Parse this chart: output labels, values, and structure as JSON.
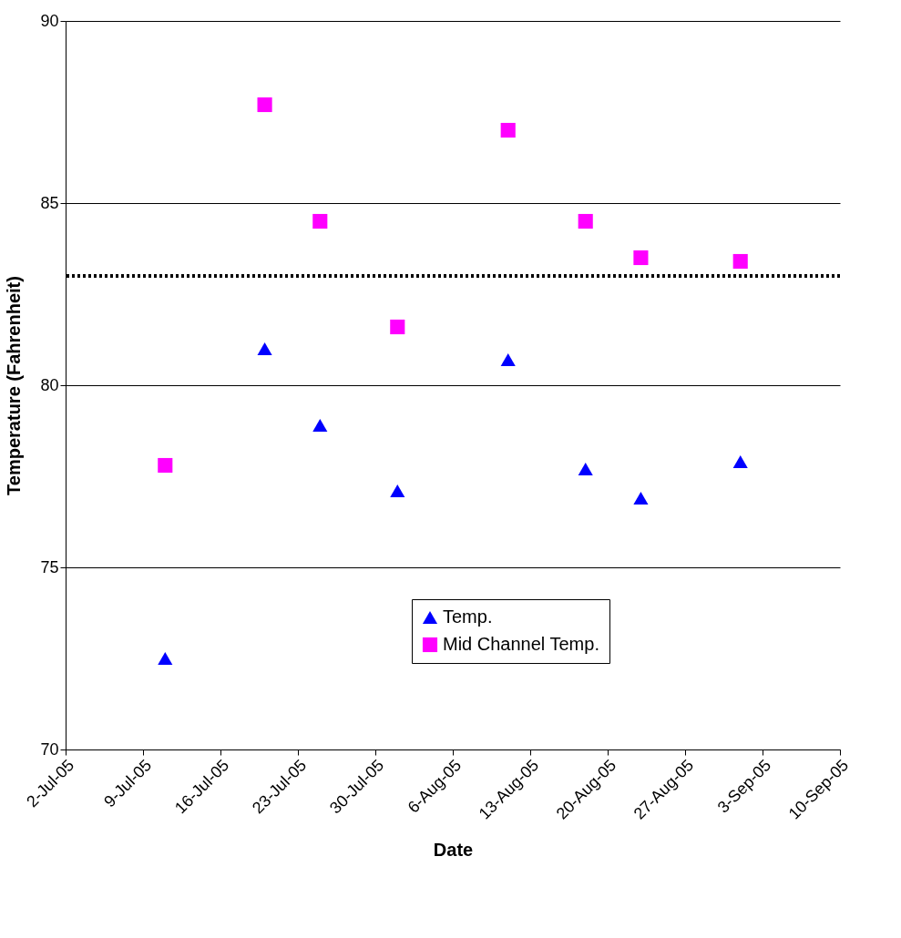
{
  "chart_data": {
    "type": "scatter",
    "xlabel": "Date",
    "ylabel": "Temperature (Fahrenheit)",
    "x": [
      "--07-11",
      "--07-20",
      "--07-25",
      "--08-01",
      "--08-11",
      "--08-18",
      "--08-23",
      "--09-01"
    ],
    "series": [
      {
        "name": "Temp.",
        "color": "#0000ff",
        "marker": "triangle",
        "values": [
          72.5,
          81.0,
          78.9,
          77.1,
          80.7,
          77.7,
          76.9,
          77.9
        ]
      },
      {
        "name": "Mid Channel Temp.",
        "color": "#ff00ff",
        "marker": "square",
        "values": [
          77.8,
          87.7,
          84.5,
          81.6,
          87.0,
          84.5,
          83.5,
          83.4
        ]
      }
    ],
    "xlim": [
      "--07-02",
      "--09-10"
    ],
    "xticks": [
      {
        "value": "--07-02",
        "label": "2-Jul-05"
      },
      {
        "value": "--07-09",
        "label": "9-Jul-05"
      },
      {
        "value": "--07-16",
        "label": "16-Jul-05"
      },
      {
        "value": "--07-23",
        "label": "23-Jul-05"
      },
      {
        "value": "--07-30",
        "label": "30-Jul-05"
      },
      {
        "value": "--08-06",
        "label": "6-Aug-05"
      },
      {
        "value": "--08-13",
        "label": "13-Aug-05"
      },
      {
        "value": "--08-20",
        "label": "20-Aug-05"
      },
      {
        "value": "--08-27",
        "label": "27-Aug-05"
      },
      {
        "value": "--09-03",
        "label": "3-Sep-05"
      },
      {
        "value": "--09-10",
        "label": "10-Sep-05"
      }
    ],
    "ylim": [
      70,
      90
    ],
    "yticks": [
      70,
      75,
      80,
      85,
      90
    ],
    "ref_lines": [
      {
        "axis": "y",
        "value": 83,
        "color": "#000000",
        "line_style": "dotted"
      }
    ],
    "grid": "y",
    "legend": "bottom"
  }
}
